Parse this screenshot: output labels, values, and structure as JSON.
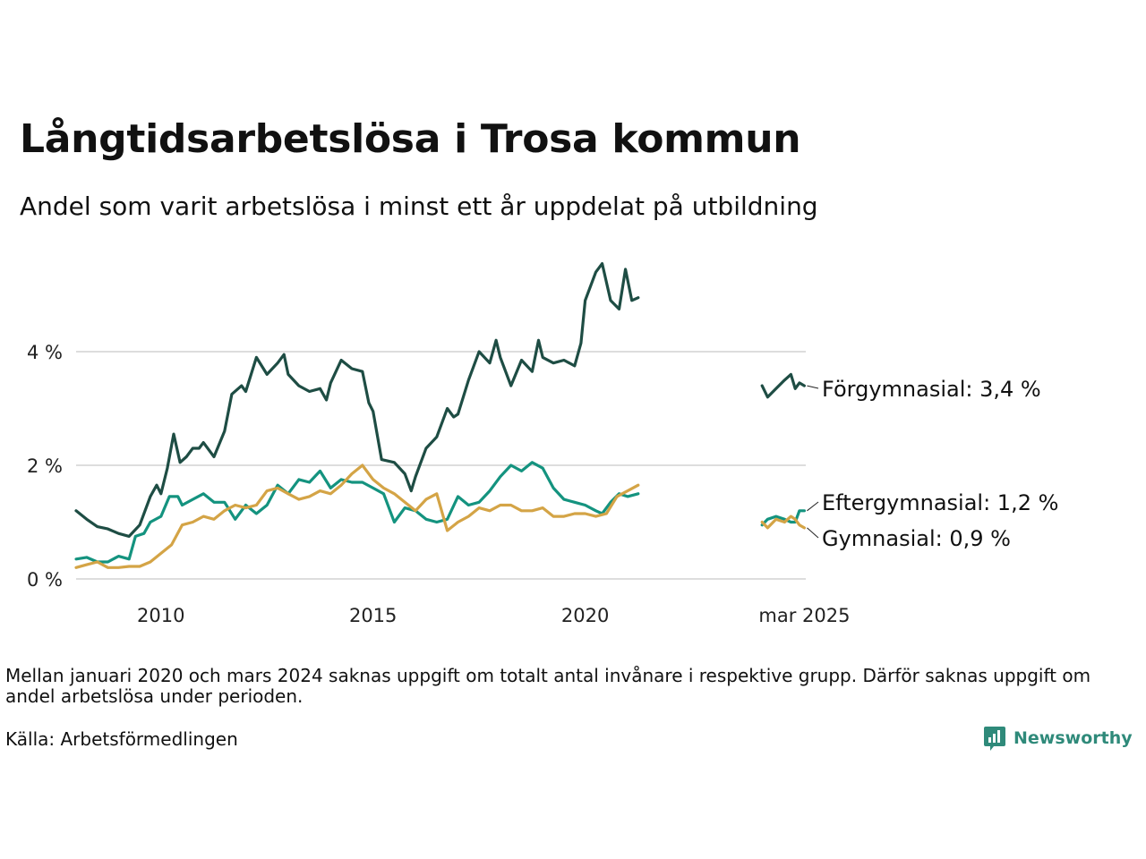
{
  "title": "Långtidsarbetslösa i Trosa kommun",
  "subtitle": "Andel som varit arbetslösa i minst ett år uppdelat på utbildning",
  "note": "Mellan januari 2020 och mars 2024 saknas uppgift om totalt antal invånare i respektive grupp. Därför saknas uppgift om andel arbetslösa under perioden.",
  "source": "Källa: Arbetsförmedlingen",
  "brand": "Newsworthy",
  "chart_data": {
    "type": "line",
    "title": "Långtidsarbetslösa i Trosa kommun",
    "subtitle": "Andel som varit arbetslösa i minst ett år uppdelat på utbildning",
    "xlabel": "",
    "ylabel": "",
    "ylim": [
      0,
      5.6
    ],
    "y_ticks": [
      0,
      2,
      4
    ],
    "y_tick_labels": [
      "0 %",
      "2 %",
      "4 %"
    ],
    "x_ticks": [
      2010,
      2015,
      2020,
      2025.167
    ],
    "x_tick_labels": [
      "2010",
      "2015",
      "2020",
      "mar 2025"
    ],
    "grid": true,
    "legend": "end-labels-right",
    "series": [
      {
        "name": "Förgymnasial",
        "color": "#1e4d44",
        "end_label": "Förgymnasial: 3,4 %",
        "segments": [
          [
            [
              2008.0,
              1.2
            ],
            [
              2008.25,
              1.05
            ],
            [
              2008.5,
              0.92
            ],
            [
              2008.75,
              0.88
            ],
            [
              2009.0,
              0.8
            ],
            [
              2009.25,
              0.75
            ],
            [
              2009.5,
              0.95
            ],
            [
              2009.75,
              1.45
            ],
            [
              2009.9,
              1.65
            ],
            [
              2010.0,
              1.5
            ],
            [
              2010.15,
              1.95
            ],
            [
              2010.3,
              2.55
            ],
            [
              2010.45,
              2.05
            ],
            [
              2010.6,
              2.15
            ],
            [
              2010.75,
              2.3
            ],
            [
              2010.9,
              2.3
            ],
            [
              2011.0,
              2.4
            ],
            [
              2011.25,
              2.15
            ],
            [
              2011.5,
              2.6
            ],
            [
              2011.67,
              3.25
            ],
            [
              2011.9,
              3.4
            ],
            [
              2012.0,
              3.3
            ],
            [
              2012.25,
              3.9
            ],
            [
              2012.5,
              3.6
            ],
            [
              2012.75,
              3.8
            ],
            [
              2012.9,
              3.95
            ],
            [
              2013.0,
              3.6
            ],
            [
              2013.25,
              3.4
            ],
            [
              2013.5,
              3.3
            ],
            [
              2013.75,
              3.35
            ],
            [
              2013.9,
              3.15
            ],
            [
              2014.0,
              3.45
            ],
            [
              2014.25,
              3.85
            ],
            [
              2014.5,
              3.7
            ],
            [
              2014.75,
              3.65
            ],
            [
              2014.9,
              3.1
            ],
            [
              2015.0,
              2.95
            ],
            [
              2015.2,
              2.1
            ],
            [
              2015.5,
              2.05
            ],
            [
              2015.75,
              1.85
            ],
            [
              2015.9,
              1.55
            ],
            [
              2016.0,
              1.8
            ],
            [
              2016.25,
              2.3
            ],
            [
              2016.5,
              2.5
            ],
            [
              2016.75,
              3.0
            ],
            [
              2016.9,
              2.85
            ],
            [
              2017.0,
              2.9
            ],
            [
              2017.25,
              3.5
            ],
            [
              2017.5,
              4.0
            ],
            [
              2017.75,
              3.8
            ],
            [
              2017.9,
              4.2
            ],
            [
              2018.0,
              3.9
            ],
            [
              2018.25,
              3.4
            ],
            [
              2018.5,
              3.85
            ],
            [
              2018.75,
              3.65
            ],
            [
              2018.9,
              4.2
            ],
            [
              2019.0,
              3.9
            ],
            [
              2019.25,
              3.8
            ],
            [
              2019.5,
              3.85
            ],
            [
              2019.75,
              3.75
            ],
            [
              2019.9,
              4.15
            ],
            [
              2020.0,
              4.9
            ],
            [
              2020.25,
              5.4
            ],
            [
              2020.4,
              5.55
            ],
            [
              2020.6,
              4.9
            ],
            [
              2020.8,
              4.75
            ],
            [
              2020.95,
              5.45
            ],
            [
              2021.1,
              4.9
            ],
            [
              2021.25,
              4.95
            ]
          ],
          [
            [
              2024.17,
              3.4
            ],
            [
              2024.3,
              3.2
            ],
            [
              2024.5,
              3.35
            ],
            [
              2024.7,
              3.5
            ],
            [
              2024.85,
              3.6
            ],
            [
              2024.95,
              3.35
            ],
            [
              2025.05,
              3.45
            ],
            [
              2025.167,
              3.4
            ]
          ]
        ]
      },
      {
        "name": "Eftergymnasial",
        "color": "#14937f",
        "end_label": "Eftergymnasial: 1,2 %",
        "segments": [
          [
            [
              2008.0,
              0.35
            ],
            [
              2008.25,
              0.38
            ],
            [
              2008.5,
              0.3
            ],
            [
              2008.75,
              0.3
            ],
            [
              2009.0,
              0.4
            ],
            [
              2009.25,
              0.35
            ],
            [
              2009.4,
              0.75
            ],
            [
              2009.6,
              0.8
            ],
            [
              2009.75,
              1.0
            ],
            [
              2010.0,
              1.1
            ],
            [
              2010.2,
              1.45
            ],
            [
              2010.4,
              1.45
            ],
            [
              2010.5,
              1.3
            ],
            [
              2010.75,
              1.4
            ],
            [
              2011.0,
              1.5
            ],
            [
              2011.25,
              1.35
            ],
            [
              2011.5,
              1.35
            ],
            [
              2011.75,
              1.05
            ],
            [
              2012.0,
              1.3
            ],
            [
              2012.25,
              1.15
            ],
            [
              2012.5,
              1.3
            ],
            [
              2012.75,
              1.65
            ],
            [
              2013.0,
              1.5
            ],
            [
              2013.25,
              1.75
            ],
            [
              2013.5,
              1.7
            ],
            [
              2013.75,
              1.9
            ],
            [
              2014.0,
              1.6
            ],
            [
              2014.25,
              1.75
            ],
            [
              2014.5,
              1.7
            ],
            [
              2014.75,
              1.7
            ],
            [
              2015.0,
              1.6
            ],
            [
              2015.25,
              1.5
            ],
            [
              2015.5,
              1.0
            ],
            [
              2015.75,
              1.25
            ],
            [
              2016.0,
              1.2
            ],
            [
              2016.25,
              1.05
            ],
            [
              2016.5,
              1.0
            ],
            [
              2016.75,
              1.05
            ],
            [
              2017.0,
              1.45
            ],
            [
              2017.25,
              1.3
            ],
            [
              2017.5,
              1.35
            ],
            [
              2017.75,
              1.55
            ],
            [
              2018.0,
              1.8
            ],
            [
              2018.25,
              2.0
            ],
            [
              2018.5,
              1.9
            ],
            [
              2018.75,
              2.05
            ],
            [
              2019.0,
              1.95
            ],
            [
              2019.25,
              1.6
            ],
            [
              2019.5,
              1.4
            ],
            [
              2019.75,
              1.35
            ],
            [
              2020.0,
              1.3
            ],
            [
              2020.25,
              1.2
            ],
            [
              2020.4,
              1.15
            ],
            [
              2020.6,
              1.35
            ],
            [
              2020.8,
              1.5
            ],
            [
              2021.0,
              1.45
            ],
            [
              2021.25,
              1.5
            ]
          ],
          [
            [
              2024.17,
              0.95
            ],
            [
              2024.3,
              1.05
            ],
            [
              2024.5,
              1.1
            ],
            [
              2024.7,
              1.05
            ],
            [
              2024.85,
              1.0
            ],
            [
              2024.95,
              1.0
            ],
            [
              2025.05,
              1.2
            ],
            [
              2025.167,
              1.2
            ]
          ]
        ]
      },
      {
        "name": "Gymnasial",
        "color": "#d4a446",
        "end_label": "Gymnasial: 0,9 %",
        "segments": [
          [
            [
              2008.0,
              0.2
            ],
            [
              2008.25,
              0.25
            ],
            [
              2008.5,
              0.3
            ],
            [
              2008.75,
              0.2
            ],
            [
              2009.0,
              0.2
            ],
            [
              2009.25,
              0.22
            ],
            [
              2009.5,
              0.22
            ],
            [
              2009.75,
              0.3
            ],
            [
              2010.0,
              0.45
            ],
            [
              2010.25,
              0.6
            ],
            [
              2010.5,
              0.95
            ],
            [
              2010.75,
              1.0
            ],
            [
              2011.0,
              1.1
            ],
            [
              2011.25,
              1.05
            ],
            [
              2011.5,
              1.2
            ],
            [
              2011.75,
              1.3
            ],
            [
              2012.0,
              1.25
            ],
            [
              2012.25,
              1.3
            ],
            [
              2012.5,
              1.55
            ],
            [
              2012.75,
              1.6
            ],
            [
              2013.0,
              1.5
            ],
            [
              2013.25,
              1.4
            ],
            [
              2013.5,
              1.45
            ],
            [
              2013.75,
              1.55
            ],
            [
              2014.0,
              1.5
            ],
            [
              2014.25,
              1.65
            ],
            [
              2014.5,
              1.85
            ],
            [
              2014.75,
              2.0
            ],
            [
              2015.0,
              1.75
            ],
            [
              2015.25,
              1.6
            ],
            [
              2015.5,
              1.5
            ],
            [
              2015.75,
              1.35
            ],
            [
              2016.0,
              1.2
            ],
            [
              2016.25,
              1.4
            ],
            [
              2016.5,
              1.5
            ],
            [
              2016.75,
              0.85
            ],
            [
              2017.0,
              1.0
            ],
            [
              2017.25,
              1.1
            ],
            [
              2017.5,
              1.25
            ],
            [
              2017.75,
              1.2
            ],
            [
              2018.0,
              1.3
            ],
            [
              2018.25,
              1.3
            ],
            [
              2018.5,
              1.2
            ],
            [
              2018.75,
              1.2
            ],
            [
              2019.0,
              1.25
            ],
            [
              2019.25,
              1.1
            ],
            [
              2019.5,
              1.1
            ],
            [
              2019.75,
              1.15
            ],
            [
              2020.0,
              1.15
            ],
            [
              2020.25,
              1.1
            ],
            [
              2020.5,
              1.15
            ],
            [
              2020.75,
              1.45
            ],
            [
              2021.0,
              1.55
            ],
            [
              2021.25,
              1.65
            ]
          ],
          [
            [
              2024.17,
              1.0
            ],
            [
              2024.3,
              0.9
            ],
            [
              2024.5,
              1.05
            ],
            [
              2024.7,
              1.0
            ],
            [
              2024.85,
              1.1
            ],
            [
              2024.95,
              1.05
            ],
            [
              2025.05,
              0.95
            ],
            [
              2025.167,
              0.9
            ]
          ]
        ]
      }
    ]
  }
}
